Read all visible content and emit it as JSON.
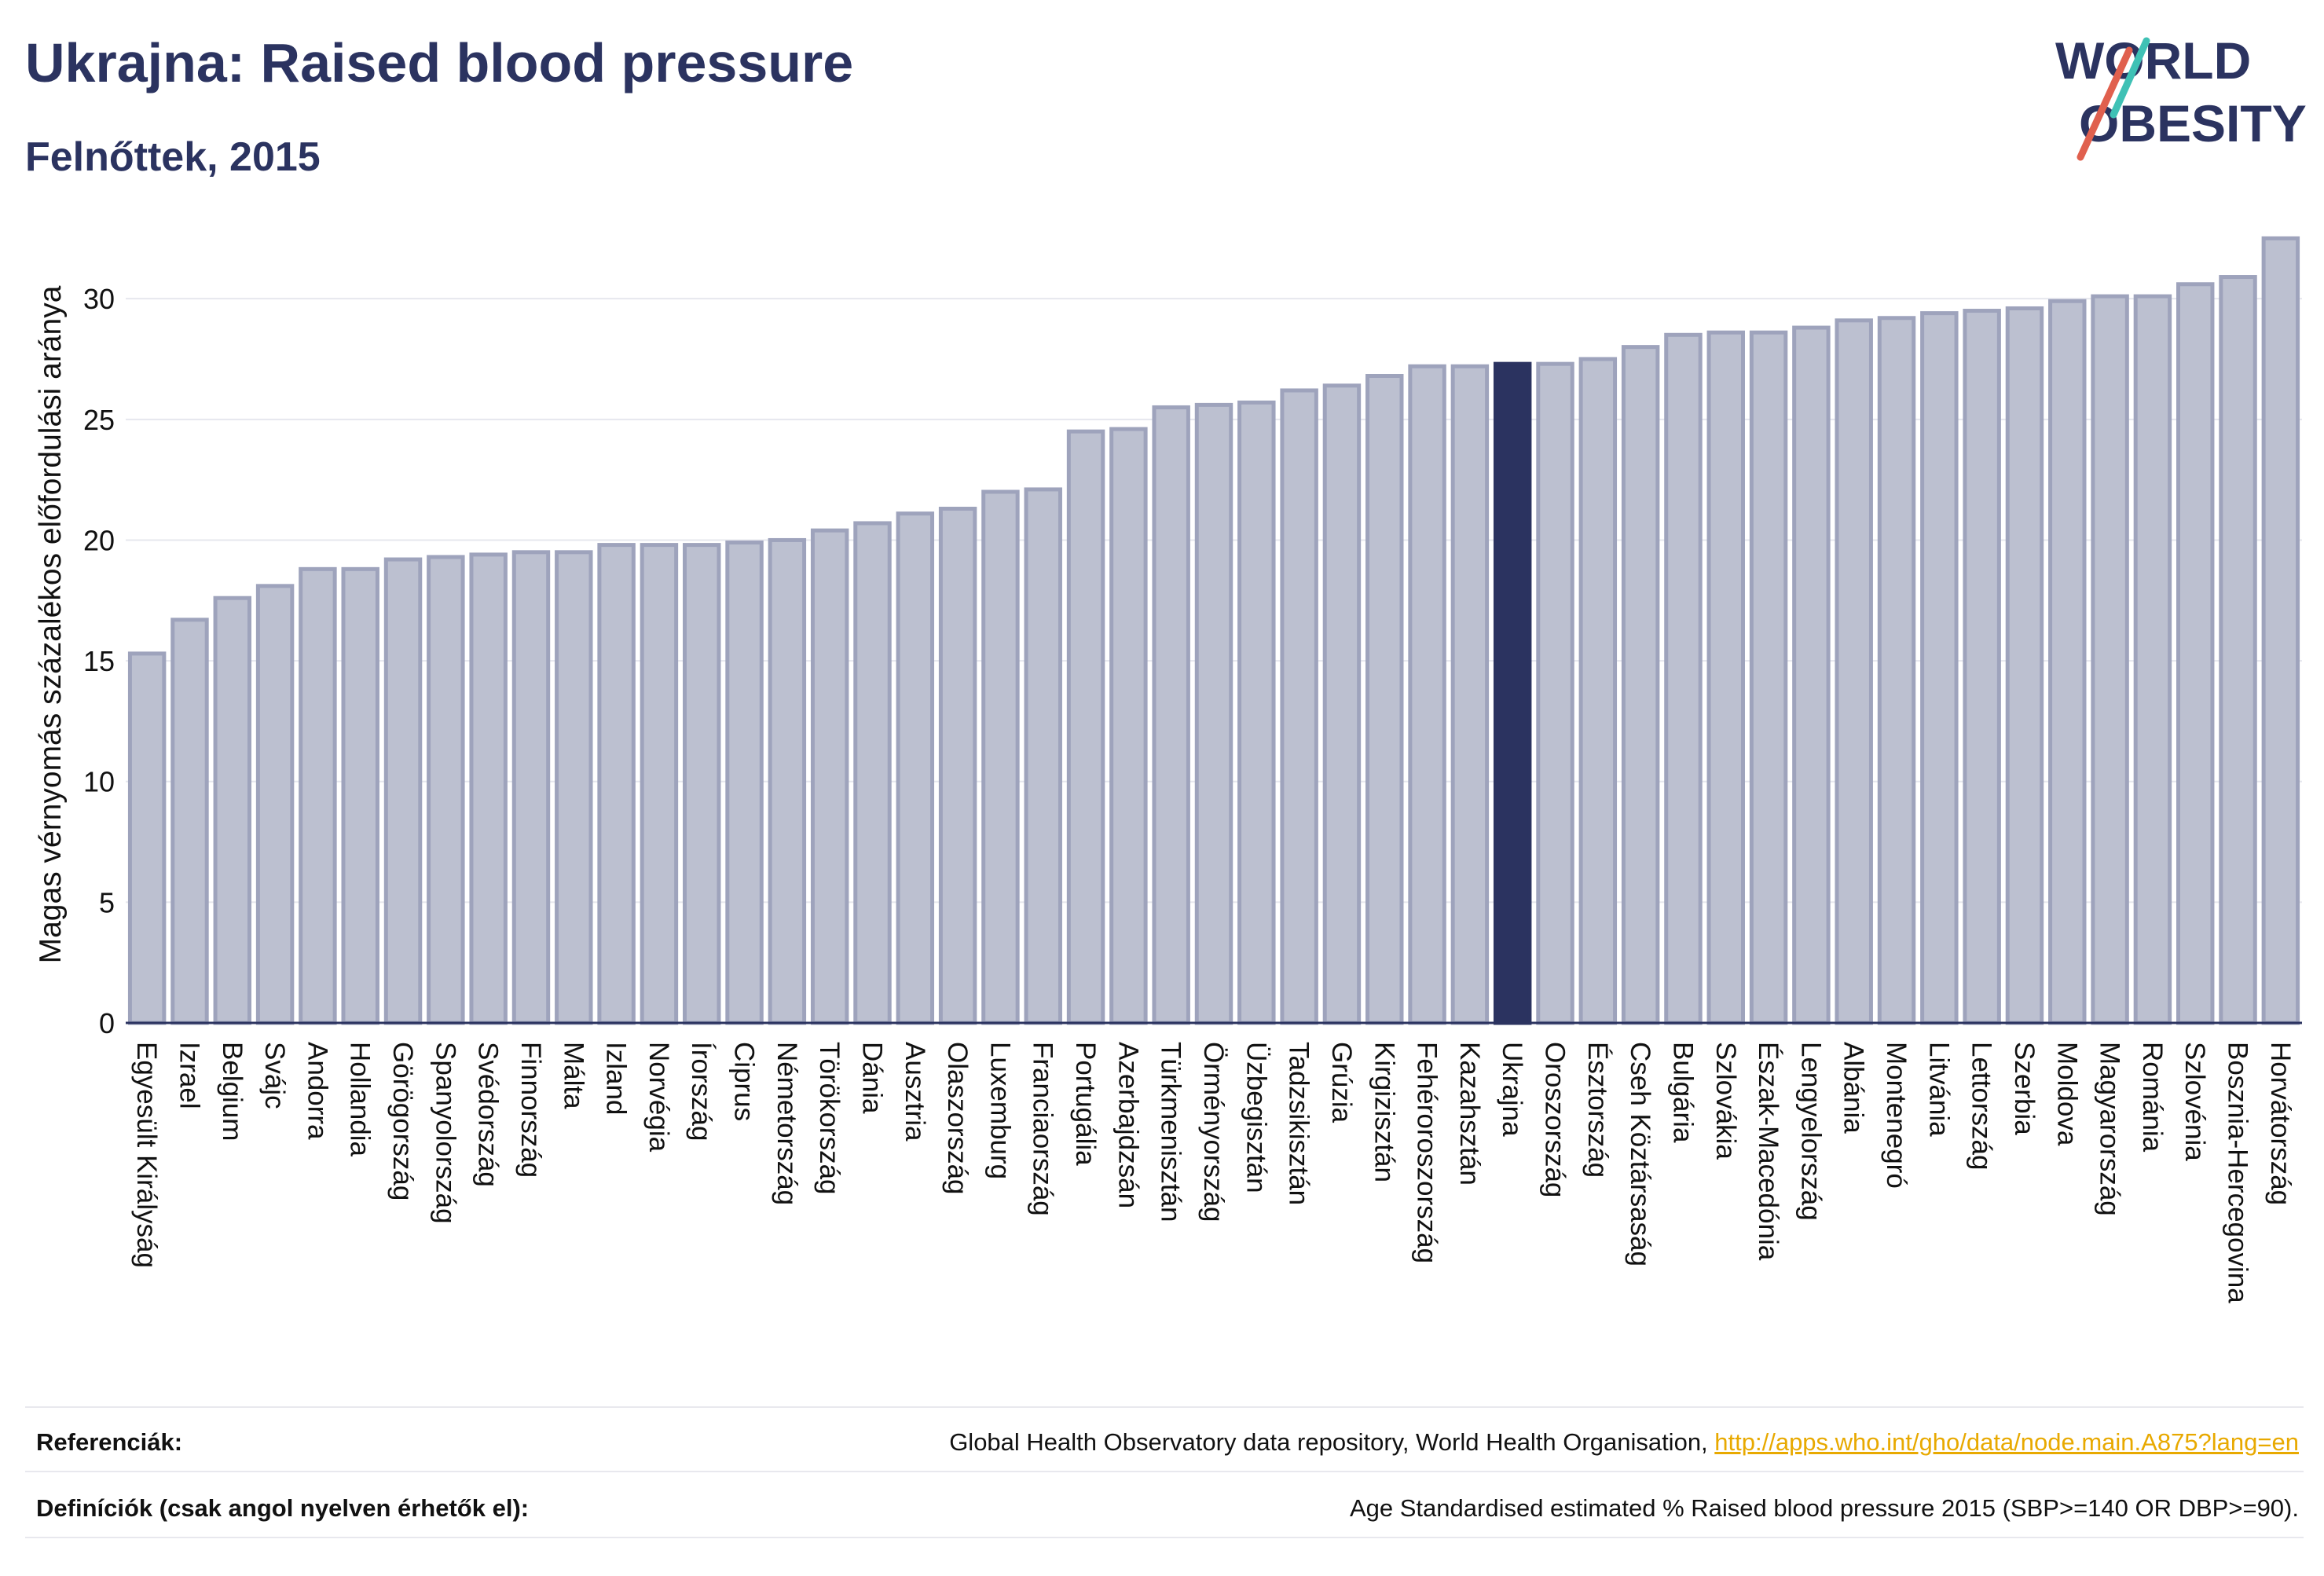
{
  "header": {
    "title": "Ukrajna: Raised blood pressure",
    "subtitle": "Felnőttek, 2015",
    "logo_line1": "WORLD",
    "logo_line2": "OBESITY"
  },
  "chart_data": {
    "type": "bar",
    "ylabel": "Magas vérnyomás százalékos előfordulási aránya",
    "ylim": [
      0,
      33
    ],
    "yticks": [
      0,
      5,
      10,
      15,
      20,
      25,
      30
    ],
    "grid": true,
    "highlight": "Ukrajna",
    "categories": [
      "Egyesült Királyság",
      "Izrael",
      "Belgium",
      "Svájc",
      "Andorra",
      "Hollandia",
      "Görögország",
      "Spanyolország",
      "Svédország",
      "Finnország",
      "Málta",
      "Izland",
      "Norvégia",
      "Írország",
      "Ciprus",
      "Németország",
      "Törökország",
      "Dánia",
      "Ausztria",
      "Olaszország",
      "Luxemburg",
      "Franciaország",
      "Portugália",
      "Azerbajdzsán",
      "Türkmenisztán",
      "Örményország",
      "Üzbegisztán",
      "Tadzsikisztán",
      "Grúzia",
      "Kirgizisztán",
      "Fehéroroszország",
      "Kazahsztán",
      "Ukrajna",
      "Oroszország",
      "Észtország",
      "Cseh Köztársaság",
      "Bulgária",
      "Szlovákia",
      "Észak-Macedónia",
      "Lengyelország",
      "Albánia",
      "Montenegró",
      "Litvánia",
      "Lettország",
      "Szerbia",
      "Moldova",
      "Magyarország",
      "Románia",
      "Szlovénia",
      "Bosznia-Hercegovina",
      "Horvátország"
    ],
    "values": [
      15.3,
      16.7,
      17.6,
      18.1,
      18.8,
      18.8,
      19.2,
      19.3,
      19.4,
      19.5,
      19.5,
      19.8,
      19.8,
      19.8,
      19.9,
      20.0,
      20.4,
      20.7,
      21.1,
      21.3,
      22.0,
      22.1,
      24.5,
      24.6,
      25.5,
      25.6,
      25.7,
      26.2,
      26.4,
      26.8,
      27.2,
      27.2,
      27.3,
      27.3,
      27.5,
      28.0,
      28.5,
      28.6,
      28.6,
      28.8,
      29.1,
      29.2,
      29.4,
      29.5,
      29.6,
      29.9,
      30.1,
      30.1,
      30.6,
      30.9,
      32.5
    ],
    "colors": {
      "bar": "#bcc0d0",
      "bar_stroke": "#9ea3bc",
      "highlight": "#2b3360",
      "grid": "#e6e7ee",
      "axis": "#2b3360"
    }
  },
  "footer": {
    "ref_label": "Referenciák:",
    "ref_text": "Global Health Observatory data repository, World Health Organisation, ",
    "ref_link": "http://apps.who.int/gho/data/node.main.A875?lang=en",
    "def_label": "Definíciók (csak angol nyelven érhetők el):",
    "def_text": "Age Standardised estimated % Raised blood pressure 2015 (SBP>=140 OR DBP>=90)."
  }
}
